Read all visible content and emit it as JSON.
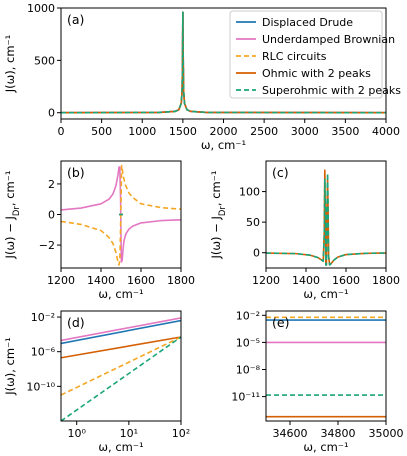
{
  "chart_data": {
    "type": "line",
    "legend_position": "top-right",
    "series": [
      {
        "key": "drude",
        "name": "Displaced Drude",
        "color": "#1f77b4",
        "dash": "solid"
      },
      {
        "key": "brown",
        "name": "Underdamped Brownian",
        "color": "#e377c2",
        "dash": "solid"
      },
      {
        "key": "rlc",
        "name": "RLC circuits",
        "color": "#f5a623",
        "dash": "dashed"
      },
      {
        "key": "ohm",
        "name": "Ohmic with 2 peaks",
        "color": "#d55e00",
        "dash": "solid"
      },
      {
        "key": "sup",
        "name": "Superohmic with 2 peaks",
        "color": "#1aa57a",
        "dash": "dashed"
      }
    ],
    "panels": [
      {
        "id": "a",
        "label": "(a)",
        "xlabel": "ω, cm⁻¹",
        "ylabel": "J(ω), cm⁻¹",
        "xlim": [
          0,
          4000
        ],
        "ylim": [
          -60,
          1000
        ],
        "xscale": "linear",
        "yscale": "linear",
        "xticks": [
          {
            "v": 0,
            "t": "0"
          },
          {
            "v": 500,
            "t": "500"
          },
          {
            "v": 1000,
            "t": "1000"
          },
          {
            "v": 1500,
            "t": "1500"
          },
          {
            "v": 2000,
            "t": "2000"
          },
          {
            "v": 2500,
            "t": "2500"
          },
          {
            "v": 3000,
            "t": "3000"
          },
          {
            "v": 3500,
            "t": "3500"
          },
          {
            "v": 4000,
            "t": "4000"
          }
        ],
        "yticks": [
          {
            "v": 0,
            "t": "0"
          },
          {
            "v": 500,
            "t": "500"
          },
          {
            "v": 1000,
            "t": "1000"
          }
        ],
        "curves": [
          {
            "series": "drude",
            "x": [
              0,
              1200,
              1400,
              1450,
              1480,
              1490,
              1495,
              1500,
              1505,
              1510,
              1520,
              1550,
              1600,
              1800,
              4000
            ],
            "y": [
              0,
              3,
              12,
              28,
              90,
              200,
              450,
              960,
              450,
              200,
              90,
              28,
              12,
              3,
              0
            ]
          },
          {
            "series": "brown",
            "x": [
              0,
              1200,
              1400,
              1450,
              1480,
              1490,
              1495,
              1500,
              1505,
              1510,
              1520,
              1550,
              1600,
              1800,
              4000
            ],
            "y": [
              0,
              3,
              12,
              28,
              90,
              200,
              450,
              960,
              450,
              200,
              90,
              28,
              12,
              3,
              0
            ]
          },
          {
            "series": "rlc",
            "x": [
              0,
              1200,
              1400,
              1450,
              1480,
              1490,
              1495,
              1500,
              1505,
              1510,
              1520,
              1550,
              1600,
              1800,
              4000
            ],
            "y": [
              0,
              3,
              12,
              28,
              90,
              200,
              450,
              960,
              450,
              200,
              90,
              28,
              12,
              3,
              0
            ]
          },
          {
            "series": "ohm",
            "x": [
              0,
              1200,
              1400,
              1450,
              1480,
              1490,
              1495,
              1500,
              1505,
              1510,
              1520,
              1550,
              1600,
              1800,
              4000
            ],
            "y": [
              0,
              3,
              12,
              28,
              90,
              200,
              450,
              960,
              450,
              200,
              90,
              28,
              12,
              3,
              0
            ]
          },
          {
            "series": "sup",
            "x": [
              0,
              1200,
              1400,
              1450,
              1480,
              1490,
              1495,
              1500,
              1505,
              1510,
              1520,
              1550,
              1600,
              1800,
              4000
            ],
            "y": [
              0,
              3,
              12,
              28,
              90,
              200,
              450,
              960,
              450,
              200,
              90,
              28,
              12,
              3,
              0
            ]
          }
        ]
      },
      {
        "id": "b",
        "label": "(b)",
        "xlabel": "ω, cm⁻¹",
        "ylabel": "J(ω) − J_Dr, cm⁻¹",
        "xlim": [
          1200,
          1800
        ],
        "ylim": [
          -3.5,
          3.5
        ],
        "xscale": "linear",
        "yscale": "linear",
        "xticks": [
          {
            "v": 1200,
            "t": "1200"
          },
          {
            "v": 1400,
            "t": "1400"
          },
          {
            "v": 1600,
            "t": "1600"
          },
          {
            "v": 1800,
            "t": "1800"
          }
        ],
        "yticks": [
          {
            "v": -2,
            "t": "−2"
          },
          {
            "v": 0,
            "t": "0"
          },
          {
            "v": 2,
            "t": "2"
          }
        ],
        "curves": [
          {
            "series": "brown",
            "x": [
              1200,
              1300,
              1400,
              1440,
              1460,
              1475,
              1485,
              1490,
              1494,
              1498,
              1500,
              1502,
              1506,
              1510,
              1515,
              1525,
              1540,
              1560,
              1600,
              1700,
              1800
            ],
            "y": [
              0.3,
              0.42,
              0.7,
              1.0,
              1.35,
              1.9,
              2.6,
              3.1,
              3.1,
              1.0,
              -1.5,
              -3.1,
              -3.0,
              -2.3,
              -1.7,
              -1.25,
              -0.95,
              -0.75,
              -0.55,
              -0.4,
              -0.35
            ]
          },
          {
            "series": "rlc",
            "x": [
              1200,
              1300,
              1400,
              1440,
              1460,
              1475,
              1485,
              1490,
              1494,
              1497,
              1499,
              1501,
              1503,
              1506,
              1510,
              1520,
              1540,
              1560,
              1600,
              1700,
              1800
            ],
            "y": [
              -0.45,
              -0.65,
              -1.05,
              -1.5,
              -1.9,
              -2.5,
              -3.1,
              -3.3,
              -3.0,
              -1.5,
              0,
              1.5,
              3.2,
              3.0,
              2.6,
              2.0,
              1.4,
              1.1,
              0.7,
              0.45,
              0.35
            ]
          },
          {
            "series": "ohm",
            "x": [
              1490,
              1499,
              1501,
              1510
            ],
            "y": [
              0,
              0,
              0,
              0
            ]
          },
          {
            "series": "sup",
            "x": [
              1490,
              1499,
              1501,
              1510
            ],
            "y": [
              0,
              0,
              0,
              0
            ]
          }
        ]
      },
      {
        "id": "c",
        "label": "(c)",
        "xlabel": "ω, cm⁻¹",
        "ylabel": "J(ω) − J_Dr, cm⁻¹",
        "xlim": [
          1200,
          1800
        ],
        "ylim": [
          -25,
          150
        ],
        "xscale": "linear",
        "yscale": "linear",
        "xticks": [
          {
            "v": 1200,
            "t": "1200"
          },
          {
            "v": 1400,
            "t": "1400"
          },
          {
            "v": 1600,
            "t": "1600"
          },
          {
            "v": 1800,
            "t": "1800"
          }
        ],
        "yticks": [
          {
            "v": 0,
            "t": "0"
          },
          {
            "v": 50,
            "t": "50"
          },
          {
            "v": 100,
            "t": "100"
          }
        ],
        "curves": [
          {
            "series": "ohm",
            "x": [
              1200,
              1350,
              1420,
              1460,
              1478,
              1486,
              1491,
              1494,
              1497,
              1499,
              1502,
              1505,
              1508,
              1510,
              1513,
              1518,
              1525,
              1540,
              1560,
              1600,
              1700,
              1800
            ],
            "y": [
              -0.5,
              -1.5,
              -4,
              -8,
              -12,
              -14,
              30,
              135,
              70,
              -20,
              -20,
              60,
              120,
              80,
              -5,
              -20,
              -18,
              -12,
              -7,
              -3,
              -1,
              -0.5
            ]
          },
          {
            "series": "sup",
            "x": [
              1200,
              1350,
              1420,
              1460,
              1478,
              1486,
              1491,
              1494,
              1497,
              1499,
              1502,
              1505,
              1508,
              1510,
              1513,
              1518,
              1525,
              1540,
              1560,
              1600,
              1700,
              1800
            ],
            "y": [
              -0.5,
              -1.5,
              -4,
              -8,
              -12,
              -14,
              25,
              120,
              70,
              -20,
              -20,
              70,
              130,
              85,
              -5,
              -20,
              -18,
              -12,
              -7,
              -3,
              -1,
              -0.5
            ]
          }
        ]
      },
      {
        "id": "d",
        "label": "(d)",
        "xlabel": "ω, cm⁻¹",
        "ylabel": "J(ω), cm⁻¹",
        "xlim": [
          0.5,
          100
        ],
        "ylim": [
          1e-14,
          0.05
        ],
        "xscale": "log",
        "yscale": "log",
        "xticks": [
          {
            "v": 1,
            "t": "10⁰"
          },
          {
            "v": 10,
            "t": "10¹"
          },
          {
            "v": 100,
            "t": "10²"
          }
        ],
        "yticks": [
          {
            "v": 1e-10,
            "t": "10⁻¹⁰"
          },
          {
            "v": 1e-06,
            "t": "10⁻⁶"
          },
          {
            "v": 0.01,
            "t": "10⁻²"
          }
        ],
        "curves": [
          {
            "series": "brown",
            "x": [
              0.5,
              100
            ],
            "y": [
              2e-05,
              0.008
            ]
          },
          {
            "series": "drude",
            "x": [
              0.5,
              100
            ],
            "y": [
              9e-06,
              0.004
            ]
          },
          {
            "series": "ohm",
            "x": [
              0.5,
              100
            ],
            "y": [
              2e-07,
              5e-05
            ]
          },
          {
            "series": "rlc",
            "x": [
              0.5,
              100
            ],
            "y": [
              1e-11,
              5e-05
            ]
          },
          {
            "series": "sup",
            "x": [
              0.5,
              100
            ],
            "y": [
              1e-14,
              5e-05
            ]
          }
        ]
      },
      {
        "id": "e",
        "label": "(e)",
        "xlabel": "ω, cm⁻¹",
        "ylabel": "",
        "xlim": [
          34500,
          35000
        ],
        "ylim": [
          2e-14,
          0.03
        ],
        "xscale": "linear",
        "yscale": "log",
        "xticks": [
          {
            "v": 34600,
            "t": "34600"
          },
          {
            "v": 34800,
            "t": "34800"
          },
          {
            "v": 35000,
            "t": "35000"
          }
        ],
        "yticks": [
          {
            "v": 1e-11,
            "t": "10⁻¹¹"
          },
          {
            "v": 1e-08,
            "t": "10⁻⁸"
          },
          {
            "v": 1e-05,
            "t": "10⁻⁵"
          },
          {
            "v": 0.01,
            "t": "10⁻²"
          }
        ],
        "curves": [
          {
            "series": "rlc",
            "x": [
              34500,
              35000
            ],
            "y": [
              0.006,
              0.006
            ]
          },
          {
            "series": "drude",
            "x": [
              34500,
              35000
            ],
            "y": [
              0.003,
              0.003
            ]
          },
          {
            "series": "brown",
            "x": [
              34500,
              35000
            ],
            "y": [
              1e-05,
              1e-05
            ]
          },
          {
            "series": "sup",
            "x": [
              34500,
              35000
            ],
            "y": [
              1.5e-11,
              1.5e-11
            ]
          },
          {
            "series": "ohm",
            "x": [
              34500,
              35000
            ],
            "y": [
              6e-14,
              6e-14
            ]
          }
        ]
      }
    ]
  }
}
